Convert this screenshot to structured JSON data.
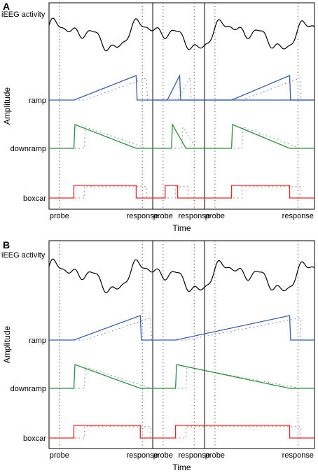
{
  "chart_data": [
    {
      "type": "line",
      "panel": "A",
      "xlabel": "Time",
      "ylabel": "Amplitude",
      "row_labels": [
        "iEEG activity",
        "ramp",
        "downramp",
        "boxcar"
      ],
      "x_tick_labels": [
        {
          "label": "probe",
          "x": 0.5
        },
        {
          "label": "response",
          "x": 4.5
        },
        {
          "label": "probe",
          "x": 5.5
        },
        {
          "label": "response",
          "x": 7.0
        },
        {
          "label": "probe",
          "x": 8.0
        },
        {
          "label": "response",
          "x": 12.0
        }
      ],
      "trial_boundaries": [
        5.0,
        7.5
      ],
      "x_range": [
        0,
        12.8
      ],
      "series": [
        {
          "color": "#3b5bab",
          "style": "solid",
          "row": "ramp",
          "x": [
            0,
            1.2,
            4.2,
            4.25,
            5.0,
            7.5,
            12.8
          ],
          "y": [
            0,
            0,
            1,
            0,
            0,
            0,
            0
          ]
        },
        {
          "color": "#3b5bab",
          "style": "solid",
          "row": "ramp",
          "x": [
            5.0,
            5.7,
            6.3,
            6.35,
            7.5
          ],
          "y": [
            0,
            0,
            1,
            0,
            0
          ]
        },
        {
          "color": "#3b5bab",
          "style": "solid",
          "row": "ramp",
          "x": [
            7.5,
            8.8,
            11.6,
            11.65,
            12.8
          ],
          "y": [
            0,
            0,
            1,
            0,
            0
          ]
        },
        {
          "color": "#2e8b3e",
          "style": "solid",
          "row": "downramp",
          "x": [
            0,
            1.2,
            1.25,
            4.2,
            5.0
          ],
          "y": [
            0,
            0,
            1,
            0,
            0
          ]
        },
        {
          "color": "#2e8b3e",
          "style": "solid",
          "row": "downramp",
          "x": [
            5.0,
            5.9,
            5.95,
            6.6,
            7.5
          ],
          "y": [
            0,
            0,
            1,
            0,
            0
          ]
        },
        {
          "color": "#2e8b3e",
          "style": "solid",
          "row": "downramp",
          "x": [
            7.5,
            8.8,
            8.85,
            11.6,
            12.8
          ],
          "y": [
            0,
            0,
            1,
            0,
            0
          ]
        },
        {
          "color": "#e02b2b",
          "style": "solid",
          "row": "boxcar",
          "x": [
            0,
            1.2,
            1.2,
            4.2,
            4.2,
            5.6,
            5.6,
            6.2,
            6.2,
            8.8,
            8.8,
            11.6,
            11.6,
            12.8
          ],
          "y": [
            0,
            0,
            1,
            1,
            0,
            0,
            1,
            1,
            0,
            0,
            1,
            1,
            0,
            0
          ]
        }
      ]
    },
    {
      "type": "line",
      "panel": "B",
      "xlabel": "Time",
      "ylabel": "Amplitude",
      "row_labels": [
        "iEEG activity",
        "ramp",
        "downramp",
        "boxcar"
      ],
      "x_tick_labels": [
        {
          "label": "probe",
          "x": 0.5
        },
        {
          "label": "response",
          "x": 4.5
        },
        {
          "label": "probe",
          "x": 5.5
        },
        {
          "label": "response",
          "x": 7.0
        },
        {
          "label": "probe",
          "x": 8.0
        },
        {
          "label": "response",
          "x": 12.0
        }
      ],
      "trial_boundaries": [
        5.0,
        7.5
      ],
      "x_range": [
        0,
        12.8
      ],
      "series": [
        {
          "color": "#3b5bab",
          "style": "solid",
          "row": "ramp",
          "x": [
            0,
            1.2,
            4.4,
            4.45,
            6.1,
            11.6,
            11.65,
            12.8
          ],
          "y": [
            0,
            0,
            1,
            0,
            0,
            1,
            0,
            0
          ]
        },
        {
          "color": "#2e8b3e",
          "style": "solid",
          "row": "downramp",
          "x": [
            0,
            1.2,
            1.25,
            4.4,
            6.1,
            6.15,
            11.6,
            12.8
          ],
          "y": [
            0,
            0,
            1,
            0,
            0,
            1,
            0,
            0
          ]
        },
        {
          "color": "#e02b2b",
          "style": "solid",
          "row": "boxcar",
          "x": [
            0,
            1.2,
            1.2,
            4.4,
            4.4,
            6.1,
            6.1,
            11.6,
            11.6,
            12.8
          ],
          "y": [
            0,
            0,
            1,
            1,
            0,
            0,
            1,
            1,
            0,
            0
          ]
        }
      ]
    }
  ]
}
